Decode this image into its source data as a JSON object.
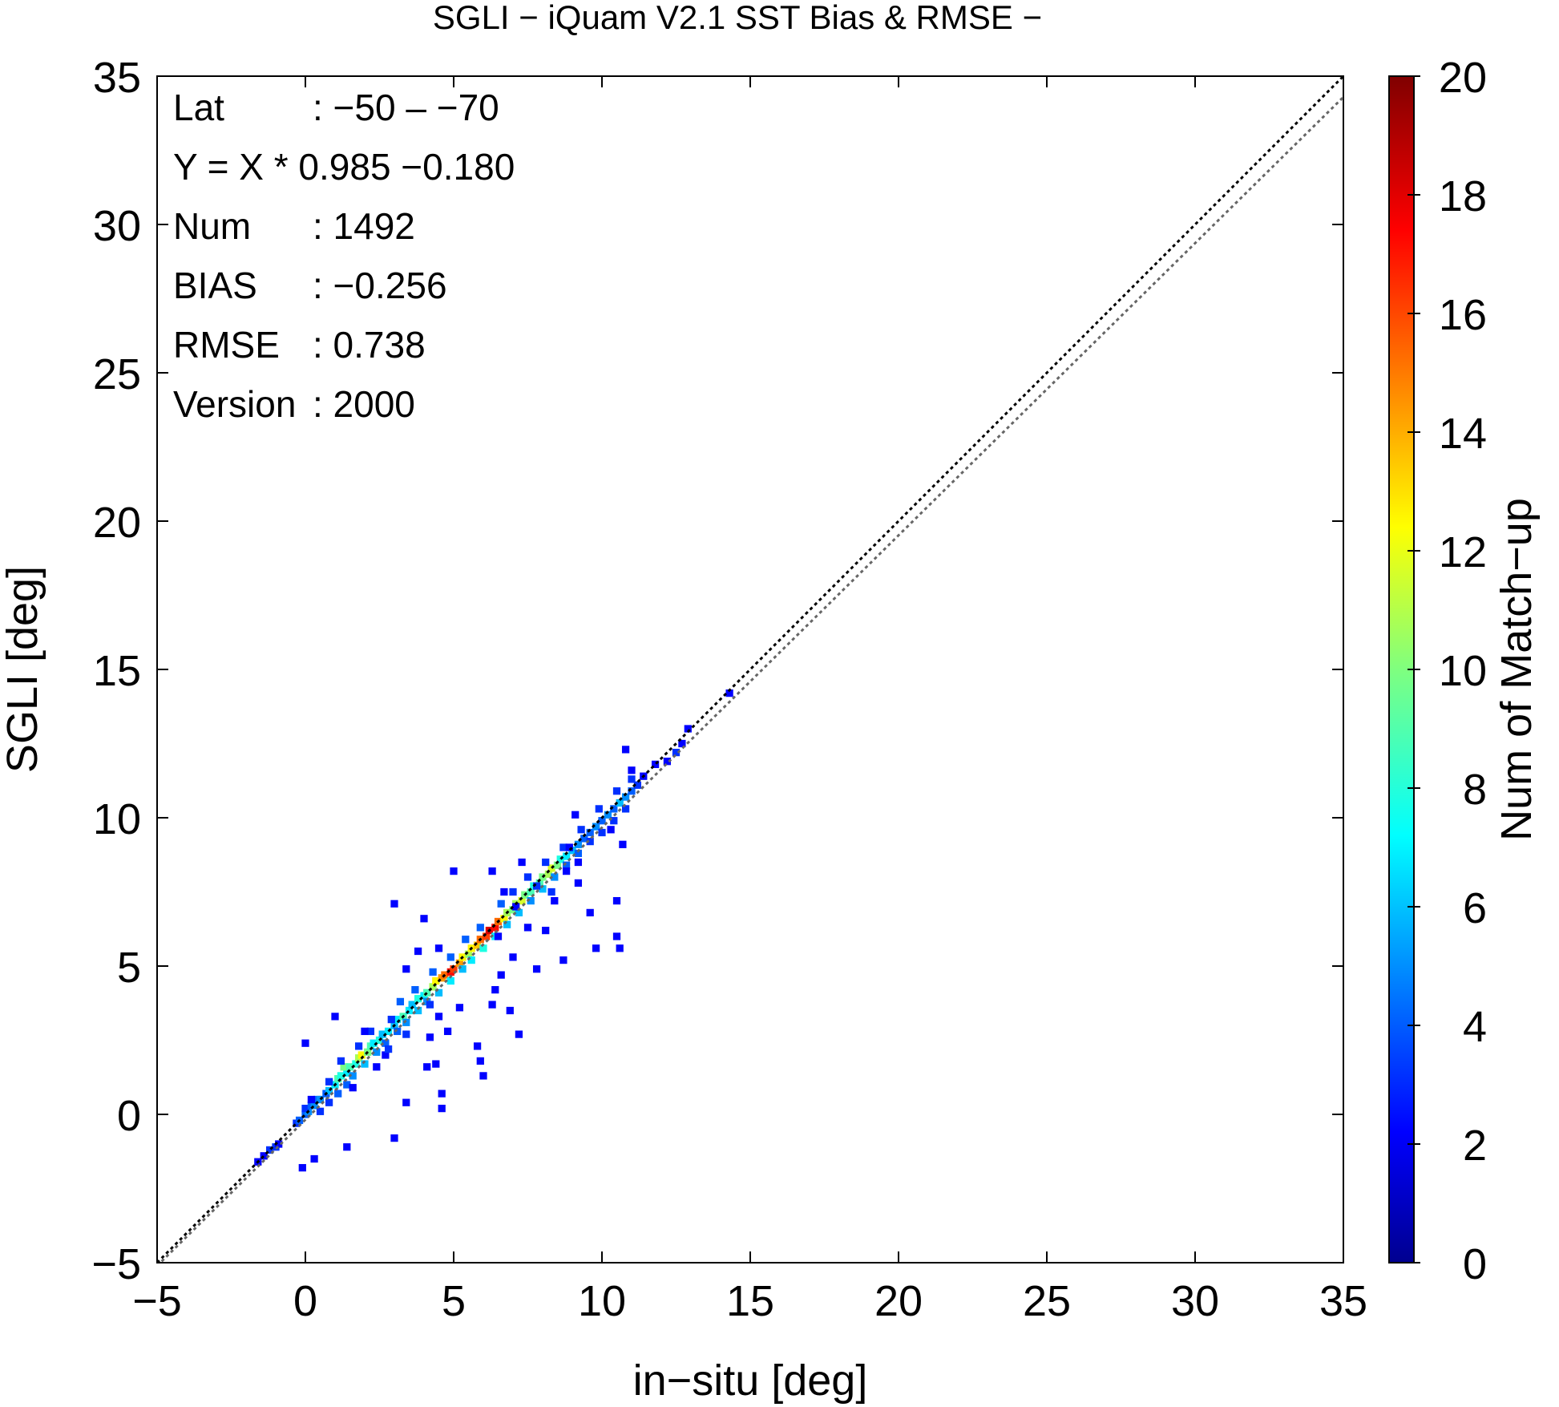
{
  "chart_data": {
    "type": "heatmap",
    "title": "SGLI − iQuam V2.1 SST Bias & RMSE  −",
    "xlabel": "in−situ [deg]",
    "ylabel": "SGLI [deg]",
    "xlim": [
      -5,
      35
    ],
    "ylim": [
      -5,
      35
    ],
    "x_ticks": [
      -5,
      0,
      5,
      10,
      15,
      20,
      25,
      30,
      35
    ],
    "x_tick_labels": [
      "−5",
      "0",
      "5",
      "10",
      "15",
      "20",
      "25",
      "30",
      "35"
    ],
    "y_ticks": [
      -5,
      0,
      5,
      10,
      15,
      20,
      25,
      30,
      35
    ],
    "y_tick_labels": [
      "−5",
      "0",
      "5",
      "10",
      "15",
      "20",
      "25",
      "30",
      "35"
    ],
    "grid": false,
    "colorbar": {
      "label": "Num of Match−up",
      "range": [
        0,
        20
      ],
      "ticks": [
        0,
        2,
        4,
        6,
        8,
        10,
        12,
        14,
        16,
        18,
        20
      ],
      "tick_labels": [
        "0",
        "2",
        "4",
        "6",
        "8",
        "10",
        "12",
        "14",
        "16",
        "18",
        "20"
      ],
      "colormap": "jet"
    },
    "lines": [
      {
        "label": "1:1",
        "slope": 1.0,
        "intercept": 0.0,
        "style": "dotted",
        "color": "#000000"
      },
      {
        "label": "regression",
        "slope": 0.985,
        "intercept": -0.18,
        "style": "dotted",
        "color": "#666666"
      }
    ],
    "stats": [
      {
        "key": "Lat",
        "value": ": −50 – −70"
      },
      {
        "key": "Y = X * 0.985 −0.180",
        "value": ""
      },
      {
        "key": "Num",
        "value": ": 1492"
      },
      {
        "key": "BIAS",
        "value": ": −0.256"
      },
      {
        "key": "RMSE",
        "value": ": 0.738"
      },
      {
        "key": "Version",
        "value": ": 2000"
      }
    ],
    "bin_size": 0.25,
    "cells": [
      [
        -1.6,
        -1.6,
        1
      ],
      [
        -1.4,
        -1.4,
        1
      ],
      [
        -1.2,
        -1.2,
        2
      ],
      [
        -1.0,
        -1.1,
        2
      ],
      [
        -0.9,
        -1.0,
        1
      ],
      [
        -0.3,
        -0.3,
        2
      ],
      [
        -0.2,
        -0.2,
        3
      ],
      [
        0.0,
        0.0,
        3
      ],
      [
        0.1,
        0.1,
        4
      ],
      [
        0.0,
        0.2,
        2
      ],
      [
        0.2,
        0.3,
        3
      ],
      [
        0.3,
        0.3,
        4
      ],
      [
        0.4,
        0.5,
        3
      ],
      [
        0.5,
        0.5,
        4
      ],
      [
        0.7,
        0.7,
        3
      ],
      [
        0.8,
        0.8,
        5
      ],
      [
        1.0,
        1.0,
        6
      ],
      [
        1.1,
        1.2,
        8
      ],
      [
        1.2,
        1.3,
        7
      ],
      [
        1.4,
        1.4,
        6
      ],
      [
        1.3,
        1.6,
        9
      ],
      [
        1.5,
        1.6,
        8
      ],
      [
        1.7,
        1.7,
        7
      ],
      [
        1.8,
        1.9,
        10
      ],
      [
        1.9,
        2.0,
        12
      ],
      [
        2.1,
        2.1,
        9
      ],
      [
        2.2,
        2.3,
        8
      ],
      [
        2.3,
        2.4,
        6
      ],
      [
        2.5,
        2.5,
        7
      ],
      [
        2.6,
        2.7,
        5
      ],
      [
        2.8,
        2.8,
        6
      ],
      [
        3.0,
        3.0,
        5
      ],
      [
        3.1,
        3.2,
        6
      ],
      [
        3.3,
        3.3,
        8
      ],
      [
        3.5,
        3.5,
        6
      ],
      [
        3.6,
        3.7,
        5
      ],
      [
        3.8,
        3.9,
        7
      ],
      [
        4.0,
        4.0,
        6
      ],
      [
        4.1,
        4.1,
        8
      ],
      [
        4.3,
        4.3,
        10
      ],
      [
        4.4,
        4.5,
        12
      ],
      [
        4.6,
        4.6,
        14
      ],
      [
        4.7,
        4.7,
        15
      ],
      [
        4.9,
        4.8,
        17
      ],
      [
        5.0,
        4.9,
        16
      ],
      [
        5.2,
        5.1,
        14
      ],
      [
        5.3,
        5.3,
        12
      ],
      [
        5.5,
        5.4,
        10
      ],
      [
        5.6,
        5.6,
        12
      ],
      [
        5.8,
        5.7,
        13
      ],
      [
        5.9,
        5.9,
        15
      ],
      [
        6.1,
        6.0,
        16
      ],
      [
        6.2,
        6.2,
        18
      ],
      [
        6.4,
        6.3,
        17
      ],
      [
        6.5,
        6.5,
        15
      ],
      [
        6.7,
        6.6,
        12
      ],
      [
        6.8,
        6.8,
        10
      ],
      [
        7.0,
        6.9,
        9
      ],
      [
        7.1,
        7.1,
        10
      ],
      [
        7.3,
        7.2,
        11
      ],
      [
        7.4,
        7.4,
        9
      ],
      [
        7.6,
        7.5,
        8
      ],
      [
        7.7,
        7.7,
        7
      ],
      [
        7.9,
        7.8,
        8
      ],
      [
        8.0,
        8.0,
        9
      ],
      [
        8.2,
        8.1,
        10
      ],
      [
        8.3,
        8.3,
        11
      ],
      [
        8.5,
        8.4,
        9
      ],
      [
        8.6,
        8.6,
        7
      ],
      [
        8.8,
        8.7,
        6
      ],
      [
        9.0,
        8.9,
        5
      ],
      [
        9.2,
        9.1,
        4
      ],
      [
        9.4,
        9.3,
        3
      ],
      [
        9.6,
        9.5,
        3
      ],
      [
        9.8,
        9.7,
        4
      ],
      [
        10.0,
        9.9,
        3
      ],
      [
        10.2,
        10.1,
        4
      ],
      [
        10.4,
        10.3,
        3
      ],
      [
        10.6,
        10.5,
        5
      ],
      [
        10.8,
        10.7,
        4
      ],
      [
        11.0,
        10.9,
        3
      ],
      [
        11.2,
        11.1,
        2
      ],
      [
        11.4,
        11.4,
        1
      ],
      [
        11.8,
        11.8,
        1
      ],
      [
        12.2,
        11.9,
        1
      ],
      [
        12.5,
        12.2,
        2
      ],
      [
        12.7,
        12.5,
        1
      ],
      [
        12.9,
        13.0,
        1
      ],
      [
        14.3,
        14.2,
        1
      ],
      [
        0.5,
        0.1,
        2
      ],
      [
        0.8,
        0.4,
        2
      ],
      [
        1.1,
        0.7,
        3
      ],
      [
        1.4,
        1.0,
        3
      ],
      [
        1.6,
        1.3,
        4
      ],
      [
        2.0,
        1.7,
        5
      ],
      [
        2.4,
        2.1,
        4
      ],
      [
        2.7,
        2.4,
        3
      ],
      [
        3.1,
        2.8,
        3
      ],
      [
        3.4,
        3.1,
        4
      ],
      [
        3.8,
        3.5,
        5
      ],
      [
        4.1,
        3.8,
        4
      ],
      [
        4.5,
        4.1,
        5
      ],
      [
        4.9,
        4.5,
        6
      ],
      [
        5.3,
        4.9,
        5
      ],
      [
        5.6,
        5.2,
        6
      ],
      [
        6.0,
        5.6,
        7
      ],
      [
        6.4,
        6.0,
        6
      ],
      [
        6.8,
        6.4,
        5
      ],
      [
        7.2,
        6.8,
        5
      ],
      [
        7.6,
        7.2,
        4
      ],
      [
        8.0,
        7.6,
        5
      ],
      [
        8.4,
        8.0,
        4
      ],
      [
        8.8,
        8.4,
        3
      ],
      [
        9.2,
        8.8,
        3
      ],
      [
        9.6,
        9.2,
        2
      ],
      [
        10.0,
        9.5,
        2
      ],
      [
        10.4,
        9.9,
        2
      ],
      [
        10.8,
        10.3,
        2
      ],
      [
        0.2,
        0.5,
        1
      ],
      [
        0.8,
        1.1,
        2
      ],
      [
        1.2,
        1.8,
        2
      ],
      [
        1.8,
        2.3,
        2
      ],
      [
        2.2,
        2.8,
        2
      ],
      [
        2.9,
        3.2,
        2
      ],
      [
        3.2,
        3.8,
        3
      ],
      [
        3.7,
        4.2,
        3
      ],
      [
        4.3,
        4.8,
        3
      ],
      [
        4.9,
        5.3,
        3
      ],
      [
        5.4,
        5.9,
        3
      ],
      [
        5.9,
        6.3,
        3
      ],
      [
        6.6,
        7.1,
        3
      ],
      [
        7.0,
        7.5,
        2
      ],
      [
        7.5,
        8.0,
        2
      ],
      [
        8.1,
        8.5,
        2
      ],
      [
        8.7,
        9.0,
        2
      ],
      [
        9.3,
        9.6,
        2
      ],
      [
        9.9,
        10.3,
        2
      ],
      [
        10.5,
        10.9,
        2
      ],
      [
        11.0,
        11.3,
        2
      ],
      [
        0.0,
        2.4,
        1
      ],
      [
        1.0,
        3.3,
        1
      ],
      [
        1.4,
        -1.1,
        1
      ],
      [
        0.3,
        -1.5,
        1
      ],
      [
        -0.1,
        -1.8,
        1
      ],
      [
        3.0,
        -0.8,
        1
      ],
      [
        1.6,
        0.9,
        1
      ],
      [
        2.0,
        2.8,
        1
      ],
      [
        2.4,
        1.6,
        1
      ],
      [
        2.7,
        2.0,
        1
      ],
      [
        3.0,
        7.1,
        1
      ],
      [
        3.8,
        5.5,
        1
      ],
      [
        3.4,
        4.9,
        1
      ],
      [
        4.0,
        6.6,
        1
      ],
      [
        4.2,
        2.6,
        1
      ],
      [
        4.5,
        3.3,
        1
      ],
      [
        4.4,
        1.7,
        1
      ],
      [
        4.8,
        2.8,
        1
      ],
      [
        4.6,
        0.2,
        1
      ],
      [
        4.6,
        0.7,
        1
      ],
      [
        3.4,
        0.4,
        1
      ],
      [
        4.1,
        1.6,
        1
      ],
      [
        4.5,
        5.6,
        1
      ],
      [
        5.0,
        8.2,
        1
      ],
      [
        5.2,
        3.6,
        1
      ],
      [
        5.8,
        2.3,
        1
      ],
      [
        5.9,
        1.8,
        1
      ],
      [
        6.0,
        1.3,
        1
      ],
      [
        6.3,
        3.7,
        1
      ],
      [
        6.4,
        4.2,
        1
      ],
      [
        6.6,
        4.7,
        1
      ],
      [
        6.9,
        3.5,
        1
      ],
      [
        7.2,
        2.7,
        1
      ],
      [
        7.0,
        5.3,
        1
      ],
      [
        6.3,
        8.2,
        1
      ],
      [
        6.7,
        7.5,
        1
      ],
      [
        7.1,
        7.0,
        1
      ],
      [
        7.3,
        8.5,
        1
      ],
      [
        7.5,
        6.3,
        1
      ],
      [
        7.8,
        4.9,
        1
      ],
      [
        8.1,
        6.2,
        1
      ],
      [
        8.4,
        7.2,
        1
      ],
      [
        8.8,
        8.2,
        1
      ],
      [
        8.9,
        9.0,
        1
      ],
      [
        8.7,
        5.2,
        1
      ],
      [
        9.2,
        7.8,
        1
      ],
      [
        9.2,
        8.5,
        1
      ],
      [
        9.6,
        6.8,
        1
      ],
      [
        9.8,
        5.6,
        1
      ],
      [
        10.3,
        9.6,
        1
      ],
      [
        10.5,
        6.0,
        1
      ],
      [
        10.6,
        5.6,
        1
      ],
      [
        10.5,
        7.2,
        1
      ],
      [
        10.7,
        9.1,
        1
      ],
      [
        10.8,
        12.3,
        1
      ],
      [
        11.0,
        11.6,
        1
      ],
      [
        9.1,
        10.1,
        1
      ],
      [
        6.5,
        6.0,
        1
      ],
      [
        7.8,
        7.7,
        2
      ],
      [
        8.3,
        7.5,
        2
      ],
      [
        4.2,
        3.7,
        2
      ],
      [
        3.4,
        2.7,
        2
      ],
      [
        2.8,
        2.2,
        2
      ]
    ]
  }
}
